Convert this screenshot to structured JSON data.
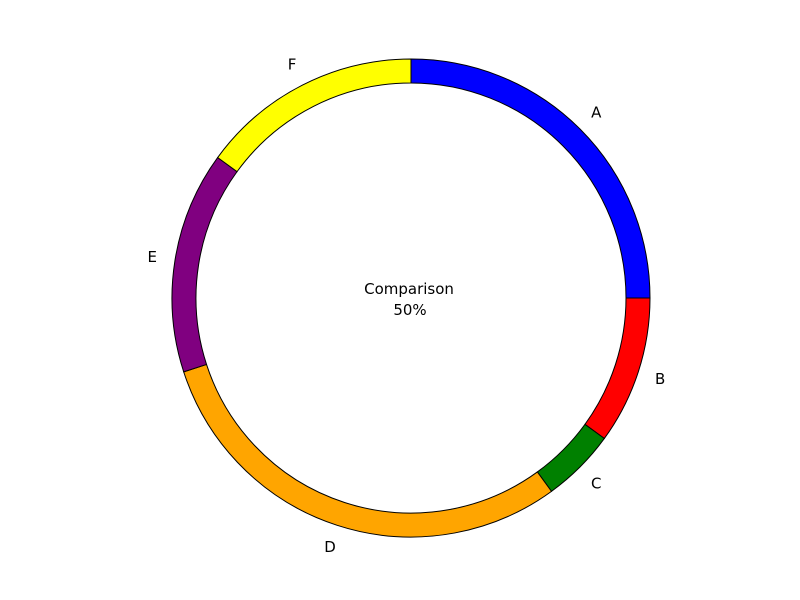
{
  "chart_data": {
    "type": "pie",
    "style": "donut",
    "categories": [
      "A",
      "B",
      "C",
      "D",
      "E",
      "F"
    ],
    "values": [
      25,
      10,
      5,
      30,
      15,
      15
    ],
    "colors": [
      "#0000ff",
      "#ff0000",
      "#008000",
      "#ffa500",
      "#800080",
      "#ffff00"
    ],
    "edge_color": "#000000",
    "start_angle_deg": 90,
    "direction": "clockwise",
    "center_text": {
      "line1": "Comparison",
      "line2": "50%"
    },
    "legend": "none",
    "grid": false
  }
}
